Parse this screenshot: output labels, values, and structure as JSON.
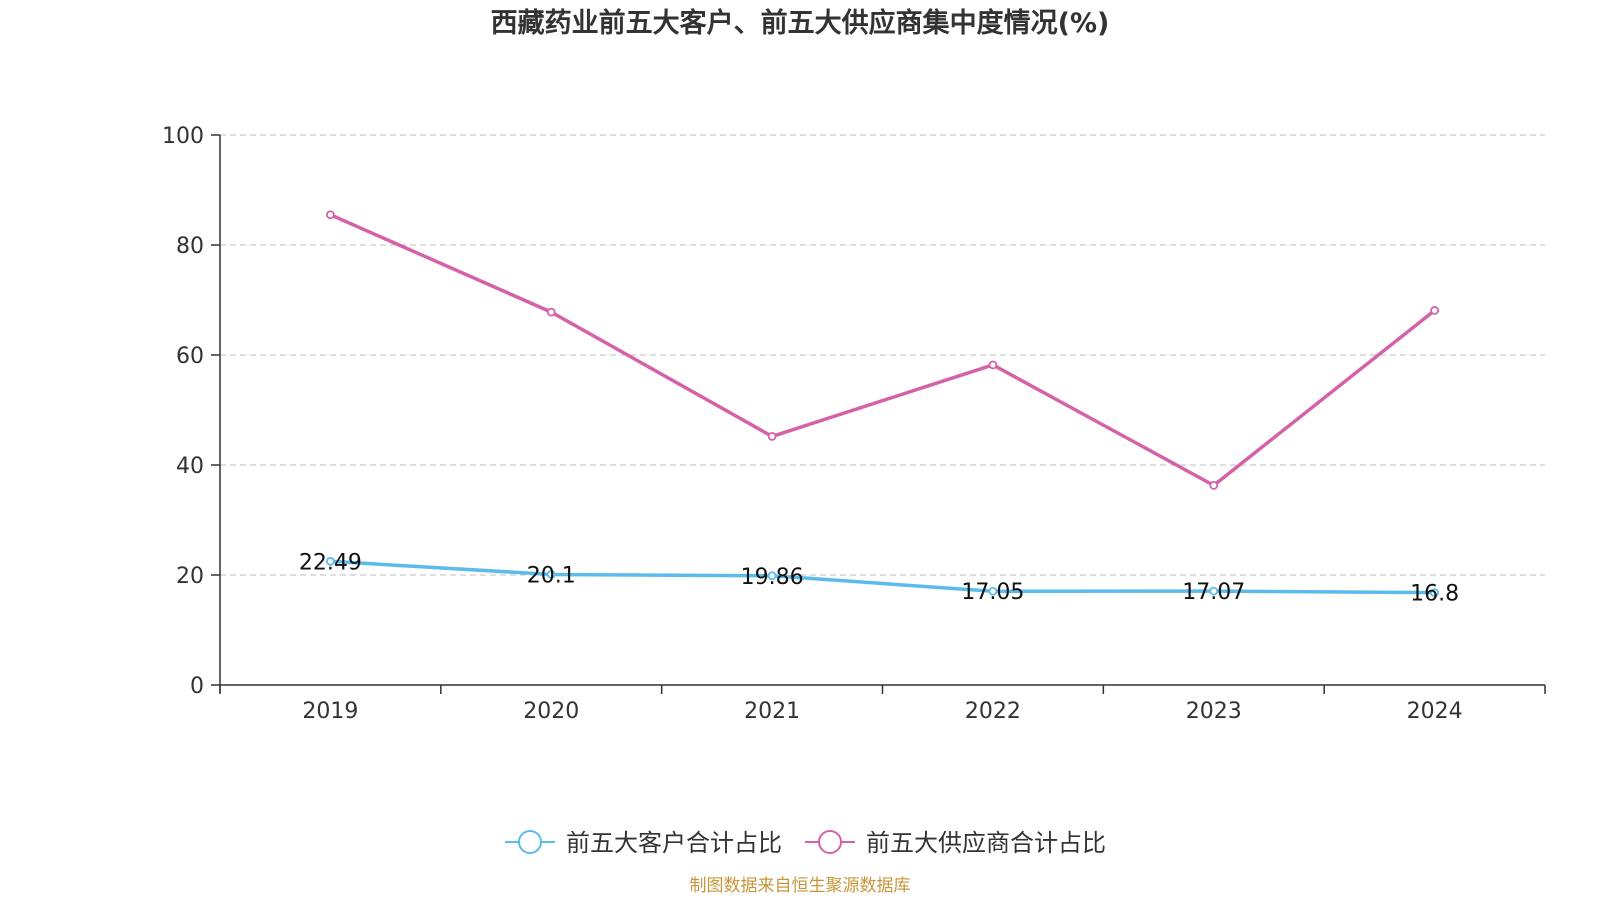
{
  "chart_data": {
    "type": "line",
    "title": "西藏药业前五大客户、前五大供应商集中度情况(%)",
    "categories": [
      "2019",
      "2020",
      "2021",
      "2022",
      "2023",
      "2024"
    ],
    "ylim": [
      0,
      100
    ],
    "yticks": [
      0,
      20,
      40,
      60,
      80,
      100
    ],
    "grid": true,
    "legend_position": "bottom",
    "series": [
      {
        "name": "前五大客户合计占比",
        "values": [
          22.49,
          20.1,
          19.86,
          17.05,
          17.07,
          16.8
        ],
        "labels": [
          "22.49",
          "20.1",
          "19.86",
          "17.05",
          "17.07",
          "16.8"
        ],
        "color": "#5bbcec"
      },
      {
        "name": "前五大供应商合计占比",
        "values": [
          85.5,
          67.8,
          45.2,
          58.2,
          36.3,
          68.1
        ],
        "color": "#d562a8"
      }
    ],
    "source": "制图数据来自恒生聚源数据库",
    "source_color": "#c8963a",
    "axis_color": "#333333",
    "grid_color": "#cccccc"
  }
}
